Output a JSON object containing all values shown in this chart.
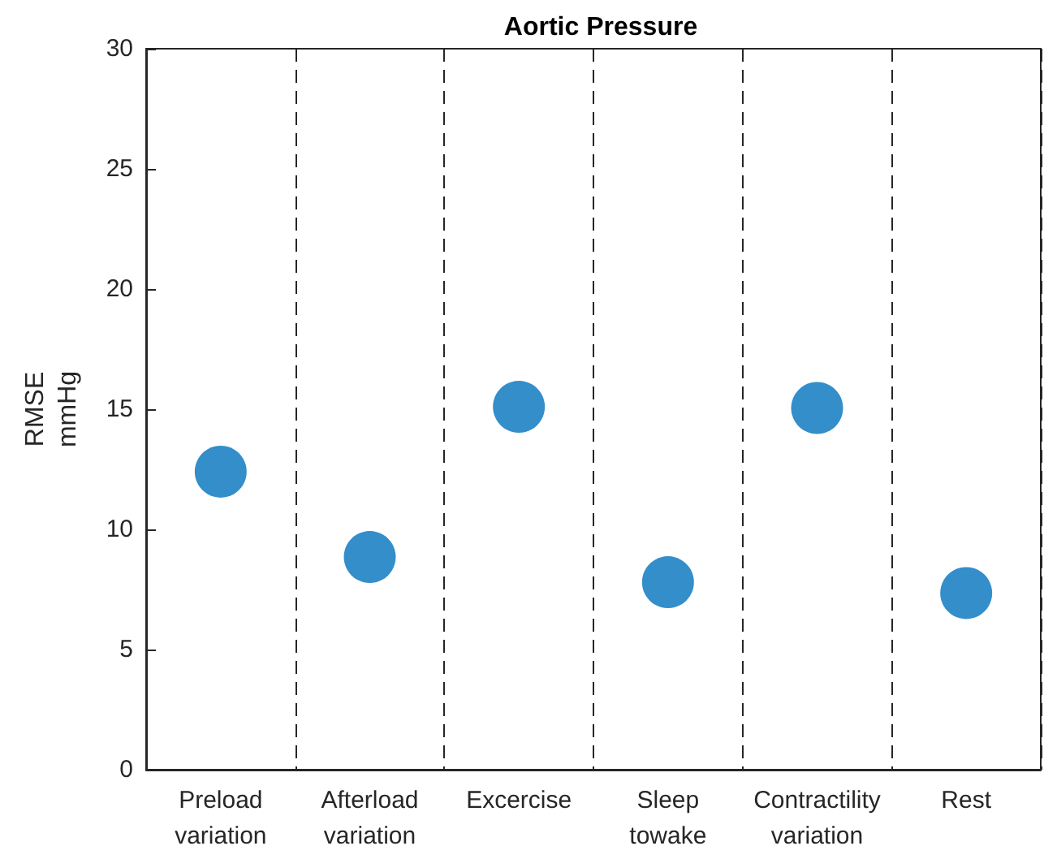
{
  "chart_data": {
    "type": "scatter",
    "title": "Aortic Pressure",
    "ylabel": "RMSE\nmmHg",
    "categories": [
      "Preload\nvariation",
      "Afterload\nvariation",
      "Excercise",
      "Sleep\ntowake",
      "Contractility\nvariation",
      "Rest"
    ],
    "series": [
      {
        "color": "#0072bd",
        "values": [
          12.4,
          8.85,
          15.1,
          7.8,
          15.05,
          7.35
        ]
      }
    ],
    "ylim": [
      0,
      30
    ],
    "yticks": [
      0,
      5,
      10,
      15,
      20,
      25,
      30
    ],
    "grid": "x",
    "marker": "circle"
  }
}
